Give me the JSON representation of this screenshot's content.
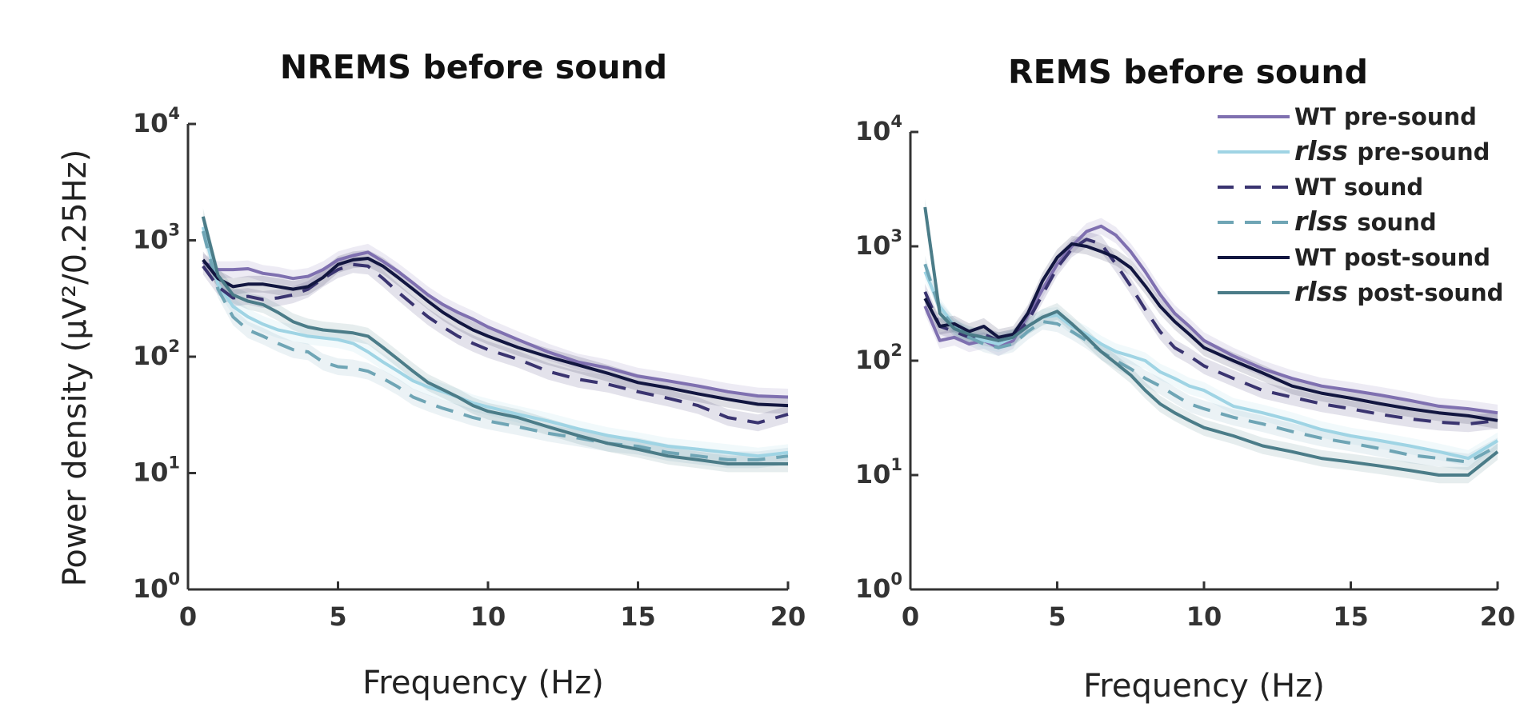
{
  "chart_data": [
    {
      "type": "line",
      "title": "NREMS before sound",
      "xlabel": "Frequency (Hz)",
      "ylabel": "Power density (µV²/0.25Hz)",
      "xlim": [
        0,
        20
      ],
      "ylim": [
        1,
        10000
      ],
      "yscale": "log",
      "grid": false,
      "xticks": [
        "0",
        "5",
        "10",
        "15",
        "20"
      ],
      "yticks": [
        {
          "base": "10",
          "exp": "0"
        },
        {
          "base": "10",
          "exp": "1"
        },
        {
          "base": "10",
          "exp": "2"
        },
        {
          "base": "10",
          "exp": "3"
        },
        {
          "base": "10",
          "exp": "4"
        }
      ],
      "x": [
        0.5,
        1,
        1.5,
        2,
        2.5,
        3,
        3.5,
        4,
        4.5,
        5,
        5.5,
        6,
        6.5,
        7,
        7.5,
        8,
        8.5,
        9,
        9.5,
        10,
        11,
        12,
        13,
        14,
        15,
        16,
        17,
        18,
        19,
        20
      ],
      "series": [
        {
          "name_prefix": "WT",
          "name_italic": "",
          "name_suffix": "pre-sound",
          "color": "#7f70b0",
          "dash": "solid",
          "shaded": true,
          "values": [
            650,
            560,
            560,
            570,
            520,
            500,
            470,
            490,
            560,
            680,
            740,
            790,
            660,
            540,
            430,
            340,
            280,
            240,
            210,
            180,
            140,
            110,
            90,
            80,
            68,
            62,
            56,
            50,
            46,
            45
          ]
        },
        {
          "name_prefix": "",
          "name_italic": "rlss",
          "name_suffix": "pre-sound",
          "color": "#9fd4e4",
          "dash": "solid",
          "shaded": true,
          "values": [
            1300,
            420,
            270,
            220,
            190,
            170,
            160,
            150,
            145,
            140,
            130,
            110,
            90,
            75,
            62,
            55,
            50,
            45,
            40,
            37,
            32,
            28,
            24,
            21,
            19,
            17,
            16,
            15,
            14,
            15
          ]
        },
        {
          "name_prefix": "WT",
          "name_italic": "",
          "name_suffix": "sound",
          "color": "#3a3470",
          "dash": "dashed",
          "shaded": true,
          "values": [
            600,
            400,
            320,
            330,
            310,
            320,
            340,
            380,
            470,
            560,
            620,
            600,
            470,
            360,
            280,
            220,
            180,
            150,
            130,
            115,
            95,
            75,
            64,
            58,
            50,
            44,
            38,
            30,
            27,
            32
          ]
        },
        {
          "name_prefix": "",
          "name_italic": "rlss",
          "name_suffix": "sound",
          "color": "#6fa5b5",
          "dash": "dashed",
          "shaded": true,
          "values": [
            1200,
            380,
            220,
            170,
            150,
            130,
            115,
            110,
            90,
            82,
            80,
            75,
            65,
            55,
            45,
            40,
            36,
            33,
            30,
            28,
            25,
            22,
            20,
            18,
            17,
            15,
            14,
            13,
            13,
            14
          ]
        },
        {
          "name_prefix": "WT",
          "name_italic": "",
          "name_suffix": "post-sound",
          "color": "#121640",
          "dash": "solid",
          "shaded": true,
          "values": [
            680,
            470,
            400,
            420,
            420,
            400,
            380,
            400,
            480,
            620,
            680,
            700,
            600,
            480,
            380,
            300,
            240,
            200,
            170,
            150,
            120,
            100,
            85,
            72,
            60,
            54,
            48,
            43,
            39,
            38
          ]
        },
        {
          "name_prefix": "",
          "name_italic": "rlss",
          "name_suffix": "post-sound",
          "color": "#4b7c88",
          "dash": "solid",
          "shaded": true,
          "values": [
            1600,
            500,
            340,
            300,
            280,
            240,
            200,
            180,
            170,
            165,
            160,
            150,
            120,
            95,
            75,
            60,
            52,
            45,
            38,
            34,
            30,
            25,
            21,
            18,
            16,
            14,
            13,
            12,
            12,
            12
          ]
        }
      ]
    },
    {
      "type": "line",
      "title": "REMS before sound",
      "xlabel": "Frequency (Hz)",
      "ylabel": "",
      "xlim": [
        0,
        20
      ],
      "ylim": [
        1,
        10000
      ],
      "yscale": "log",
      "grid": false,
      "legend": "top-right",
      "xticks": [
        "0",
        "5",
        "10",
        "15",
        "20"
      ],
      "yticks": [
        {
          "base": "10",
          "exp": "0"
        },
        {
          "base": "10",
          "exp": "1"
        },
        {
          "base": "10",
          "exp": "2"
        },
        {
          "base": "10",
          "exp": "3"
        },
        {
          "base": "10",
          "exp": "4"
        }
      ],
      "x": [
        0.5,
        1,
        1.5,
        2,
        2.5,
        3,
        3.5,
        4,
        4.5,
        5,
        5.5,
        6,
        6.5,
        7,
        7.5,
        8,
        8.5,
        9,
        9.5,
        10,
        11,
        12,
        13,
        14,
        15,
        16,
        17,
        18,
        19,
        20
      ],
      "series": [
        {
          "name_prefix": "WT",
          "name_italic": "",
          "name_suffix": "pre-sound",
          "color": "#7f70b0",
          "dash": "solid",
          "shaded": true,
          "values": [
            300,
            150,
            160,
            140,
            150,
            130,
            150,
            250,
            420,
            700,
            1000,
            1350,
            1500,
            1250,
            900,
            600,
            380,
            260,
            200,
            150,
            110,
            85,
            70,
            60,
            55,
            50,
            45,
            40,
            38,
            35
          ]
        },
        {
          "name_prefix": "",
          "name_italic": "rlss",
          "name_suffix": "pre-sound",
          "color": "#9fd4e4",
          "dash": "solid",
          "shaded": true,
          "values": [
            600,
            300,
            200,
            170,
            150,
            140,
            160,
            200,
            240,
            250,
            200,
            170,
            140,
            120,
            110,
            100,
            80,
            70,
            60,
            55,
            40,
            35,
            30,
            25,
            22,
            20,
            18,
            16,
            14,
            20
          ]
        },
        {
          "name_prefix": "WT",
          "name_italic": "",
          "name_suffix": "sound",
          "color": "#3a3470",
          "dash": "dashed",
          "shaded": true,
          "values": [
            400,
            200,
            180,
            160,
            170,
            150,
            160,
            220,
            380,
            650,
            950,
            1150,
            1050,
            700,
            450,
            280,
            180,
            130,
            110,
            90,
            70,
            55,
            48,
            42,
            38,
            34,
            31,
            29,
            28,
            30
          ]
        },
        {
          "name_prefix": "",
          "name_italic": "rlss",
          "name_suffix": "sound",
          "color": "#6fa5b5",
          "dash": "dashed",
          "shaded": true,
          "values": [
            700,
            280,
            200,
            160,
            140,
            130,
            140,
            180,
            220,
            210,
            180,
            150,
            120,
            100,
            85,
            70,
            60,
            50,
            42,
            38,
            32,
            28,
            24,
            21,
            19,
            17,
            15,
            14,
            13,
            18
          ]
        },
        {
          "name_prefix": "WT",
          "name_italic": "",
          "name_suffix": "post-sound",
          "color": "#121640",
          "dash": "solid",
          "shaded": true,
          "values": [
            350,
            200,
            210,
            180,
            200,
            160,
            170,
            260,
            500,
            800,
            1050,
            1000,
            900,
            800,
            650,
            450,
            300,
            220,
            170,
            130,
            100,
            78,
            60,
            52,
            47,
            42,
            38,
            35,
            33,
            30
          ]
        },
        {
          "name_prefix": "",
          "name_italic": "rlss",
          "name_suffix": "post-sound",
          "color": "#4b7c88",
          "dash": "solid",
          "shaded": true,
          "values": [
            2200,
            260,
            190,
            170,
            160,
            150,
            160,
            200,
            240,
            270,
            210,
            160,
            120,
            95,
            75,
            55,
            42,
            35,
            30,
            26,
            22,
            18,
            16,
            14,
            13,
            12,
            11,
            10,
            10,
            16
          ]
        }
      ]
    }
  ]
}
